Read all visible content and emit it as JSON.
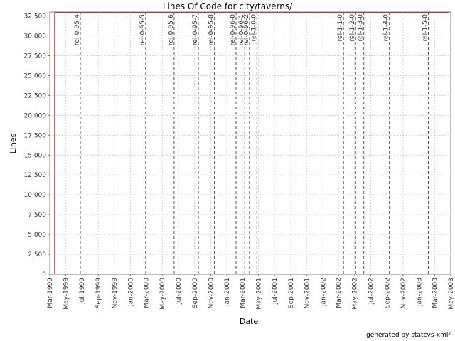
{
  "chart_data": {
    "type": "line",
    "title": "Lines Of Code for city/taverns/",
    "xlabel": "Date",
    "ylabel": "Lines",
    "footer": "generated by statcvs-xml²",
    "x_range": [
      "1999-03-01",
      "2003-05-01"
    ],
    "ylim": [
      0,
      33000
    ],
    "y_ticks": [
      0,
      2500,
      5000,
      7500,
      10000,
      12500,
      15000,
      17500,
      20000,
      22500,
      25000,
      27500,
      30000,
      32500
    ],
    "y_tick_labels": [
      "0",
      "2,500",
      "5,000",
      "7,500",
      "10,000",
      "12,500",
      "15,000",
      "17,500",
      "20,000",
      "22,500",
      "25,000",
      "27,500",
      "30,000",
      "32,500"
    ],
    "x_ticks": [
      "1999-03-01",
      "1999-05-01",
      "1999-07-01",
      "1999-09-01",
      "1999-11-01",
      "2000-01-01",
      "2000-03-01",
      "2000-05-01",
      "2000-07-01",
      "2000-09-01",
      "2000-11-01",
      "2001-01-01",
      "2001-03-01",
      "2001-05-01",
      "2001-07-01",
      "2001-09-01",
      "2001-11-01",
      "2002-01-01",
      "2002-03-01",
      "2002-05-01",
      "2002-07-01",
      "2002-09-01",
      "2002-11-01",
      "2003-01-01",
      "2003-03-01",
      "2003-05-01"
    ],
    "x_tick_labels": [
      "Mar-1999",
      "May-1999",
      "Jul-1999",
      "Sep-1999",
      "Nov-1999",
      "Jan-2000",
      "Mar-2000",
      "May-2000",
      "Jul-2000",
      "Sep-2000",
      "Nov-2000",
      "Jan-2001",
      "Mar-2001",
      "May-2001",
      "Jul-2001",
      "Sep-2001",
      "Nov-2001",
      "Jan-2002",
      "Mar-2002",
      "May-2002",
      "Jul-2002",
      "Sep-2002",
      "Nov-2002",
      "Jan-2003",
      "Mar-2003",
      "May-2003"
    ],
    "grid": true,
    "series": [
      {
        "color": "#cc0000",
        "points": [
          {
            "x": "1999-03-20",
            "y": 0
          },
          {
            "x": "1999-03-20",
            "y": 32900
          },
          {
            "x": "2003-04-25",
            "y": 32900
          }
        ]
      }
    ],
    "releases": [
      {
        "label": "rel-0-95-4",
        "date": "1999-06-25"
      },
      {
        "label": "rel-0-95-5",
        "date": "2000-02-28"
      },
      {
        "label": "rel-0-95-6",
        "date": "2000-06-15"
      },
      {
        "label": "rel-0-95-7",
        "date": "2000-09-15"
      },
      {
        "label": "rel-0-95-8",
        "date": "2000-11-15"
      },
      {
        "label": "rel-0-96-0",
        "date": "2001-02-05"
      },
      {
        "label": "rel-0-96-1",
        "date": "2001-03-10"
      },
      {
        "label": "rel-0-96-2",
        "date": "2001-03-28"
      },
      {
        "label": "rel-1-0-0",
        "date": "2001-04-25"
      },
      {
        "label": "rel-1-1-0",
        "date": "2002-03-20"
      },
      {
        "label": "rel-1-2-0",
        "date": "2002-05-05"
      },
      {
        "label": "rel-1-3-0",
        "date": "2002-06-05"
      },
      {
        "label": "rel-1-4-0",
        "date": "2002-09-10"
      },
      {
        "label": "rel-1-5-0",
        "date": "2003-02-05"
      }
    ],
    "colors": {
      "line": "#cc0000",
      "grid": "#d0d0d0",
      "release_line": "#555555",
      "axis": "#808080"
    }
  }
}
